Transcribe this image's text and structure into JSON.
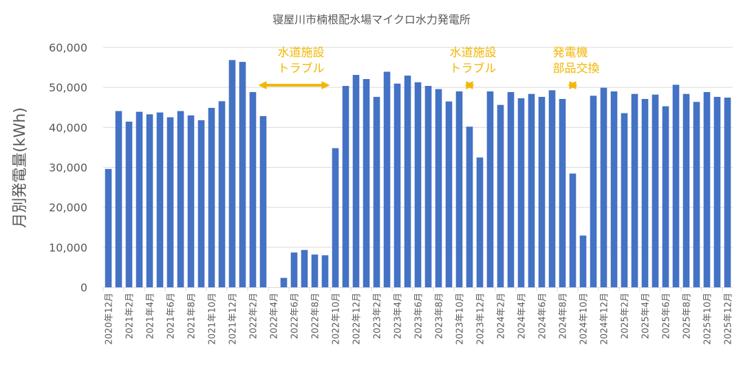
{
  "chart_data": {
    "type": "bar",
    "title": "寝屋川市楠根配水場マイクロ水力発電所",
    "xlabel": "",
    "ylabel": "月別発電量(kWh)",
    "ylim": [
      0,
      60000
    ],
    "yticks": [
      0,
      10000,
      20000,
      30000,
      40000,
      50000,
      60000
    ],
    "ytick_labels": [
      "0",
      "10,000",
      "20,000",
      "30,000",
      "40,000",
      "50,000",
      "60,000"
    ],
    "grid": true,
    "legend": "none",
    "colors": {
      "bar": "#4472C4",
      "annotation": "#F2B705",
      "grid": "#D9D9D9"
    },
    "categories": [
      "2020年12月",
      "2021年1月",
      "2021年2月",
      "2021年3月",
      "2021年4月",
      "2021年5月",
      "2021年6月",
      "2021年7月",
      "2021年8月",
      "2021年9月",
      "2021年10月",
      "2021年11月",
      "2021年12月",
      "2022年1月",
      "2022年2月",
      "2022年3月",
      "2022年4月",
      "2022年5月",
      "2022年6月",
      "2022年7月",
      "2022年8月",
      "2022年9月",
      "2022年10月",
      "2022年11月",
      "2022年12月",
      "2023年1月",
      "2023年2月",
      "2023年3月",
      "2023年4月",
      "2023年5月",
      "2023年6月",
      "2023年7月",
      "2023年8月",
      "2023年9月",
      "2023年10月",
      "2023年11月",
      "2023年12月",
      "2024年1月",
      "2024年2月",
      "2024年3月",
      "2024年4月",
      "2024年5月",
      "2024年6月",
      "2024年7月",
      "2024年8月",
      "2024年9月",
      "2024年10月",
      "2024年11月",
      "2024年12月",
      "2025年1月",
      "2025年2月",
      "2025年3月",
      "2025年4月",
      "2025年5月",
      "2025年6月",
      "2025年7月",
      "2025年8月",
      "2025年9月",
      "2025年10月",
      "2025年11月",
      "2025年12月"
    ],
    "values": [
      29600,
      44080,
      41440,
      43900,
      43270,
      43730,
      42530,
      44080,
      42990,
      41790,
      44880,
      46540,
      56840,
      56380,
      48830,
      42820,
      0,
      2350,
      8700,
      9330,
      8190,
      8010,
      34800,
      50370,
      53120,
      52090,
      47630,
      53920,
      50950,
      52950,
      51290,
      50370,
      49570,
      46480,
      49000,
      40180,
      32460,
      49000,
      45620,
      48830,
      47280,
      48370,
      47630,
      49280,
      47110,
      28450,
      12940,
      47910,
      49910,
      49000,
      43560,
      48370,
      47110,
      48200,
      45280,
      50660,
      48370,
      46370,
      48830,
      47630,
      47450
    ],
    "annotations": [
      {
        "lines": [
          "水道施設",
          "トラブル"
        ],
        "from": "2022年2月",
        "to": "2022年10月"
      },
      {
        "lines": [
          "水道施設",
          "トラブル"
        ],
        "from": "2023年10月",
        "to": "2023年12月"
      },
      {
        "lines": [
          "発電機",
          "部品交換"
        ],
        "from": "2024年8月",
        "to": "2024年10月"
      }
    ]
  }
}
